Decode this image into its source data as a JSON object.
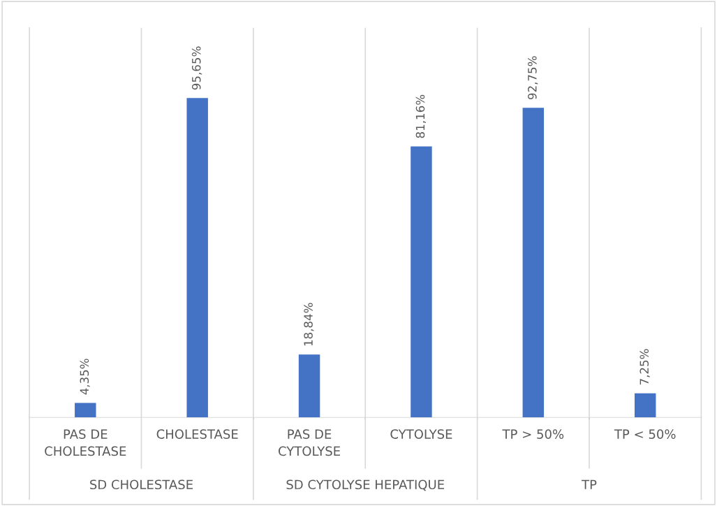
{
  "chart_data": {
    "type": "bar",
    "categories": [
      "PAS DE\nCHOLESTASE",
      "CHOLESTASE",
      "PAS DE\nCYTOLYSE",
      "CYTOLYSE",
      "TP > 50%",
      "TP < 50%"
    ],
    "values": [
      4.35,
      95.65,
      18.84,
      81.16,
      92.75,
      7.25
    ],
    "value_labels": [
      "4,35%",
      "95,65%",
      "18,84%",
      "81,16%",
      "92,75%",
      "7,25%"
    ],
    "color": "#4472c4",
    "annotations": [
      "SD CHOLESTASE",
      "SD CYTOLYSE HEPATIQUE",
      "TP"
    ],
    "grid": "x",
    "legend": false
  }
}
